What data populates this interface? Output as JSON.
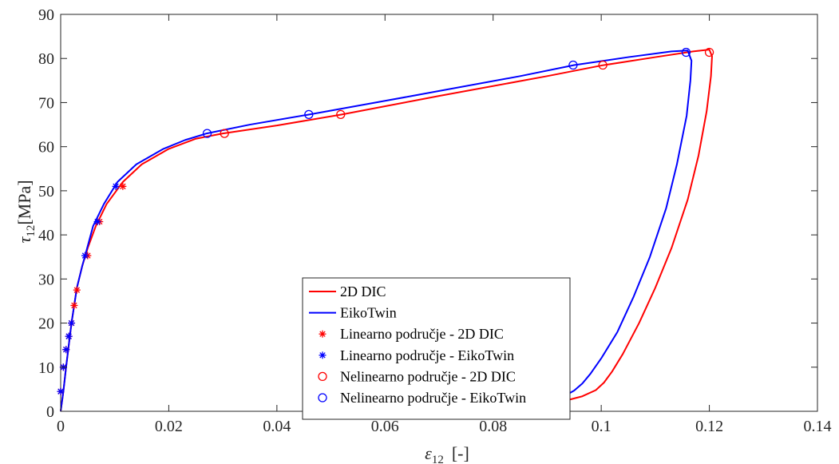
{
  "chart_data": {
    "type": "line",
    "xlim": [
      0,
      0.14
    ],
    "ylim": [
      0,
      90
    ],
    "x_ticks": [
      0,
      0.02,
      0.04,
      0.06,
      0.08,
      0.1,
      0.12,
      0.14
    ],
    "x_tick_labels": [
      "0",
      "0.02",
      "0.04",
      "0.06",
      "0.08",
      "0.1",
      "0.12",
      "0.14"
    ],
    "y_ticks": [
      0,
      10,
      20,
      30,
      40,
      50,
      60,
      70,
      80,
      90
    ],
    "y_tick_labels": [
      "0",
      "10",
      "20",
      "30",
      "40",
      "50",
      "60",
      "70",
      "80",
      "90"
    ],
    "xlabel": {
      "symbol": "ε",
      "sub": "12",
      "unit": "[-]"
    },
    "ylabel": {
      "symbol": "τ",
      "sub": "12",
      "unit": "[MPa]"
    },
    "grid": false,
    "legend_placement": "bottom-center",
    "series": [
      {
        "name": "2D DIC",
        "kind": "line",
        "color": "#ff0000",
        "x": [
          0,
          0.0005,
          0.001,
          0.002,
          0.003,
          0.004,
          0.005,
          0.0065,
          0.0085,
          0.0115,
          0.015,
          0.02,
          0.025,
          0.03,
          0.04,
          0.052,
          0.07,
          0.09,
          0.1,
          0.11,
          0.117,
          0.12,
          0.1205,
          0.1203,
          0.1195,
          0.118,
          0.116,
          0.113,
          0.11,
          0.107,
          0.104,
          0.102,
          0.1005,
          0.099,
          0.0965,
          0.094
        ],
        "y": [
          0,
          4.5,
          10,
          20,
          28,
          33,
          37,
          42,
          47,
          52,
          56,
          59.5,
          61.8,
          63,
          64.8,
          67.3,
          71.5,
          76,
          78.4,
          80.3,
          81.6,
          82,
          80.5,
          76,
          68,
          58,
          48,
          37,
          28,
          20,
          13,
          9,
          6.5,
          4.8,
          3.4,
          2.6
        ]
      },
      {
        "name": "EikoTwin",
        "kind": "line",
        "color": "#0000ff",
        "x": [
          0,
          0.0005,
          0.001,
          0.002,
          0.003,
          0.004,
          0.0045,
          0.006,
          0.008,
          0.0105,
          0.014,
          0.019,
          0.023,
          0.027,
          0.035,
          0.046,
          0.065,
          0.085,
          0.095,
          0.105,
          0.113,
          0.116,
          0.1167,
          0.1165,
          0.1158,
          0.114,
          0.112,
          0.109,
          0.106,
          0.103,
          0.1,
          0.098,
          0.0965,
          0.095,
          0.094
        ],
        "y": [
          0,
          4.5,
          10,
          20,
          28,
          33,
          35.2,
          42,
          47,
          52,
          56,
          59.5,
          61.5,
          63,
          65,
          67.3,
          71.5,
          76,
          78.5,
          80.3,
          81.6,
          81.8,
          79.5,
          75,
          67,
          56,
          46,
          35,
          26,
          18,
          12,
          8.5,
          6.3,
          4.7,
          4
        ]
      },
      {
        "name": "Linearno područje - 2D DIC",
        "kind": "marker",
        "marker": "asterisk",
        "color": "#ff0000",
        "x": [
          0,
          0.0005,
          0.001,
          0.0015,
          0.002,
          0.0025,
          0.003,
          0.005,
          0.0072,
          0.0115
        ],
        "y": [
          4.5,
          10,
          14,
          17,
          20,
          24,
          27.5,
          35.3,
          43,
          51
        ]
      },
      {
        "name": "Linearno područje - EikoTwin",
        "kind": "marker",
        "marker": "asterisk",
        "color": "#0000ff",
        "x": [
          0,
          0.0005,
          0.001,
          0.0015,
          0.002,
          0.0045,
          0.0068,
          0.0102
        ],
        "y": [
          4.5,
          10,
          14,
          17,
          20,
          35.3,
          43,
          51
        ]
      },
      {
        "name": "Nelinearno područje - 2D DIC",
        "kind": "marker",
        "marker": "circle",
        "color": "#ff0000",
        "x": [
          0.0303,
          0.0518,
          0.1003,
          0.12
        ],
        "y": [
          63,
          67.3,
          78.5,
          81.4
        ]
      },
      {
        "name": "Nelinearno područje - EikoTwin",
        "kind": "marker",
        "marker": "circle",
        "color": "#0000ff",
        "x": [
          0.0271,
          0.0459,
          0.0948,
          0.1157
        ],
        "y": [
          63,
          67.3,
          78.5,
          81.4
        ]
      }
    ]
  }
}
